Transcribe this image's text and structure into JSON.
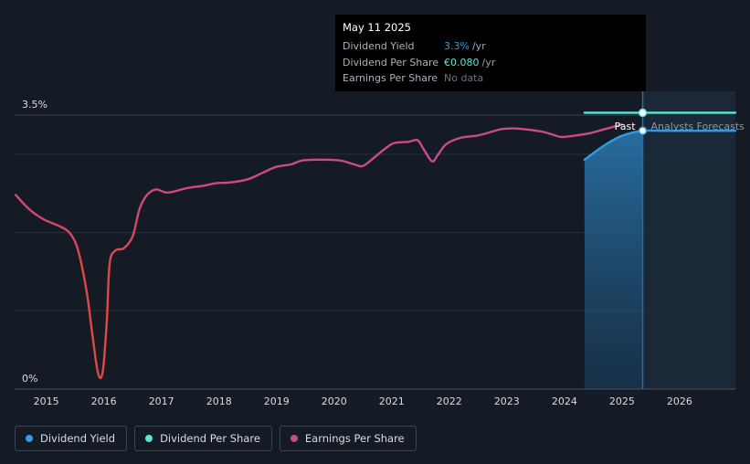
{
  "tooltip": {
    "date": "May 11 2025",
    "rows": [
      {
        "label": "Dividend Yield",
        "value": "3.3%",
        "unit": "/yr",
        "color": "#2e9be8"
      },
      {
        "label": "Dividend Per Share",
        "value": "€0.080",
        "unit": "/yr",
        "color": "#5fe3d8"
      },
      {
        "label": "Earnings Per Share",
        "value": "No data",
        "unit": "",
        "color": "#6c747e"
      }
    ]
  },
  "legend": [
    {
      "label": "Dividend Yield",
      "color": "#2e9be8"
    },
    {
      "label": "Dividend Per Share",
      "color": "#5fe3d8"
    },
    {
      "label": "Earnings Per Share",
      "color": "#c94a8e"
    }
  ],
  "chart_data": {
    "type": "line",
    "ylim": [
      0,
      3.5
    ],
    "y_tick_labels": [
      "3.5%",
      "0%"
    ],
    "x_ticks": [
      "2015",
      "2016",
      "2017",
      "2018",
      "2019",
      "2020",
      "2021",
      "2022",
      "2023",
      "2024",
      "2025",
      "2026"
    ],
    "xlim": [
      "2014.45",
      "2026.97"
    ],
    "past_label": "Past",
    "forecast_label": "Analysts Forecasts",
    "forecast_start": 2025.36,
    "series": [
      {
        "name": "Earnings Per Share",
        "color": "#c94a8e",
        "low_color": "#e04848",
        "x": [
          2014.47,
          2014.7,
          2014.95,
          2015.2,
          2015.4,
          2015.55,
          2015.7,
          2015.8,
          2015.9,
          2015.98,
          2016.05,
          2016.1,
          2016.2,
          2016.35,
          2016.5,
          2016.62,
          2016.75,
          2016.9,
          2017.0,
          2017.1,
          2017.25,
          2017.4,
          2017.55,
          2017.75,
          2017.95,
          2018.2,
          2018.5,
          2018.75,
          2019.0,
          2019.25,
          2019.45,
          2019.75,
          2020.1,
          2020.35,
          2020.5,
          2020.7,
          2020.85,
          2021.0,
          2021.1,
          2021.3,
          2021.45,
          2021.55,
          2021.7,
          2021.8,
          2021.95,
          2022.2,
          2022.5,
          2022.75,
          2022.9,
          2023.1,
          2023.3,
          2023.6,
          2023.8,
          2023.95,
          2024.2,
          2024.45,
          2024.7,
          2025.0
        ],
        "y": [
          2.48,
          2.3,
          2.17,
          2.09,
          2.0,
          1.78,
          1.25,
          0.7,
          0.2,
          0.22,
          0.85,
          1.6,
          1.77,
          1.8,
          1.95,
          2.3,
          2.48,
          2.55,
          2.53,
          2.51,
          2.53,
          2.56,
          2.58,
          2.6,
          2.63,
          2.64,
          2.68,
          2.76,
          2.84,
          2.87,
          2.92,
          2.93,
          2.92,
          2.87,
          2.85,
          2.96,
          3.05,
          3.13,
          3.15,
          3.16,
          3.18,
          3.07,
          2.91,
          2.99,
          3.13,
          3.21,
          3.24,
          3.29,
          3.32,
          3.33,
          3.32,
          3.29,
          3.25,
          3.22,
          3.24,
          3.27,
          3.32,
          3.38
        ]
      },
      {
        "name": "Dividend Yield",
        "color": "#2e9be8",
        "x": [
          2024.35,
          2024.55,
          2024.75,
          2024.95,
          2025.15,
          2025.36,
          2025.7,
          2026.2,
          2026.97
        ],
        "y": [
          2.93,
          3.04,
          3.14,
          3.22,
          3.27,
          3.3,
          3.3,
          3.3,
          3.3
        ]
      },
      {
        "name": "Dividend Per Share",
        "color": "#5fe3d8",
        "x": [
          2024.35,
          2025.36,
          2026.97
        ],
        "y": [
          3.53,
          3.53,
          3.53
        ]
      }
    ]
  }
}
